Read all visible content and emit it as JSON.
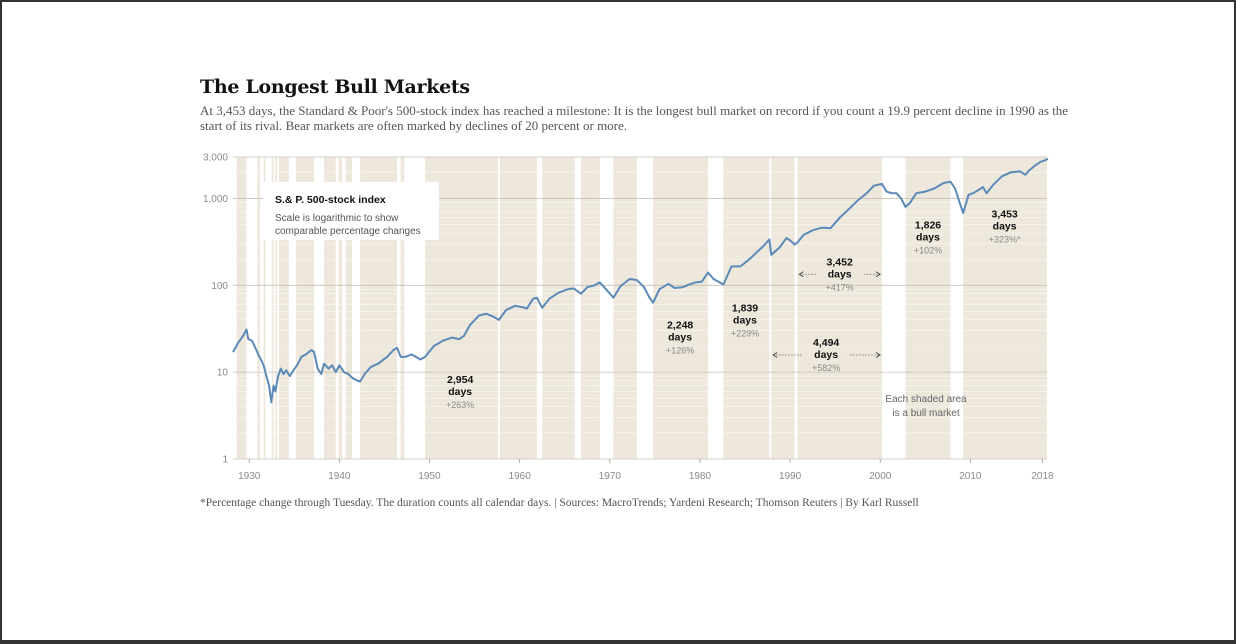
{
  "title": "The Longest Bull Markets",
  "subtitle": "At 3,453 days, the Standard & Poor's 500-stock index has reached a milestone: It is the longest bull market on record if you count a 19.9 percent decline in 1990 as the start of its rival. Bear markets are often marked by declines of 20 percent or more.",
  "footnote": "*Percentage change through Tuesday. The duration counts all calendar days. | Sources: MacroTrends; Yardeni Research; Thomson Reuters | By Karl Russell",
  "colors": {
    "line": "#5b8ab8",
    "shade": "#ede7dc",
    "background": "#ffffff"
  },
  "chart_data": {
    "type": "line",
    "scale": "log",
    "grid": true,
    "ylim": [
      1,
      3000
    ],
    "xlim": [
      1928.2,
      2018.5
    ],
    "y_ticks": [
      {
        "value": 3000,
        "label": "3,000"
      },
      {
        "value": 1000,
        "label": "1,000"
      },
      {
        "value": 100,
        "label": "100"
      },
      {
        "value": 10,
        "label": "10"
      },
      {
        "value": 1,
        "label": "1"
      }
    ],
    "x_ticks": [
      {
        "value": 1930,
        "label": "1930"
      },
      {
        "value": 1940,
        "label": "1940"
      },
      {
        "value": 1950,
        "label": "1950"
      },
      {
        "value": 1960,
        "label": "1960"
      },
      {
        "value": 1970,
        "label": "1970"
      },
      {
        "value": 1980,
        "label": "1980"
      },
      {
        "value": 1990,
        "label": "1990"
      },
      {
        "value": 2000,
        "label": "2000"
      },
      {
        "value": 2010,
        "label": "2010"
      },
      {
        "value": 2018,
        "label": "2018"
      }
    ],
    "legend": {
      "title": "S.& P. 500-stock index",
      "note_line1": "Scale is logarithmic to show",
      "note_line2": "comparable percentage changes"
    },
    "shade_note": {
      "line1": "Each shaded area",
      "line2": "is a bull market"
    },
    "bull_markets": [
      {
        "start": 1928.6,
        "end": 1929.7
      },
      {
        "start": 1930.9,
        "end": 1931.2
      },
      {
        "start": 1931.6,
        "end": 1931.8
      },
      {
        "start": 1932.5,
        "end": 1932.7
      },
      {
        "start": 1932.9,
        "end": 1933.1
      },
      {
        "start": 1933.3,
        "end": 1934.4
      },
      {
        "start": 1935.2,
        "end": 1937.2
      },
      {
        "start": 1938.3,
        "end": 1939.6
      },
      {
        "start": 1939.9,
        "end": 1940.3
      },
      {
        "start": 1940.7,
        "end": 1941.4
      },
      {
        "start": 1942.3,
        "end": 1946.4
      },
      {
        "start": 1946.8,
        "end": 1947.2
      },
      {
        "start": 1949.5,
        "end": 1957.6
      },
      {
        "start": 1957.8,
        "end": 1961.9
      },
      {
        "start": 1962.5,
        "end": 1966.1
      },
      {
        "start": 1966.8,
        "end": 1968.9
      },
      {
        "start": 1970.4,
        "end": 1973.0
      },
      {
        "start": 1974.8,
        "end": 1980.9
      },
      {
        "start": 1982.6,
        "end": 1987.7
      },
      {
        "start": 1987.9,
        "end": 1990.5
      },
      {
        "start": 1990.8,
        "end": 2000.2
      },
      {
        "start": 2002.8,
        "end": 2007.8
      },
      {
        "start": 2009.2,
        "end": 2018.5
      }
    ],
    "series": [
      {
        "x": [
          1928.2,
          1928.8,
          1929.3,
          1929.7,
          1929.9,
          1930.3,
          1930.6,
          1931.0,
          1931.3,
          1931.6,
          1931.9,
          1932.2,
          1932.45,
          1932.7,
          1932.9,
          1933.2,
          1933.5,
          1933.8,
          1934.1,
          1934.5,
          1934.9,
          1935.3,
          1935.8,
          1936.3,
          1936.9,
          1937.2,
          1937.6,
          1938.0,
          1938.3,
          1938.8,
          1939.2,
          1939.6,
          1940.0,
          1940.5,
          1941.0,
          1941.5,
          1942.0,
          1942.3,
          1942.8,
          1943.5,
          1944.3,
          1945.3,
          1946.0,
          1946.4,
          1946.8,
          1947.3,
          1948.0,
          1948.5,
          1949.0,
          1949.5,
          1950.5,
          1951.5,
          1952.5,
          1953.3,
          1953.8,
          1954.5,
          1955.5,
          1956.3,
          1957.0,
          1957.7,
          1958.5,
          1959.5,
          1960.3,
          1960.8,
          1961.5,
          1961.9,
          1962.5,
          1963.3,
          1964.3,
          1965.3,
          1966.0,
          1966.8,
          1967.5,
          1968.3,
          1968.9,
          1969.5,
          1970.4,
          1971.2,
          1972.2,
          1973.0,
          1973.8,
          1974.4,
          1974.8,
          1975.5,
          1976.5,
          1977.2,
          1978.1,
          1978.8,
          1979.5,
          1980.2,
          1980.9,
          1981.5,
          1982.6,
          1983.5,
          1984.5,
          1985.5,
          1986.3,
          1987.0,
          1987.7,
          1987.9,
          1988.8,
          1989.6,
          1990.0,
          1990.5,
          1990.8,
          1991.5,
          1992.5,
          1993.5,
          1994.5,
          1995.5,
          1996.5,
          1997.5,
          1998.5,
          1999.3,
          2000.2,
          2000.7,
          2001.3,
          2001.8,
          2002.3,
          2002.8,
          2003.3,
          2004.0,
          2005.0,
          2006.0,
          2007.0,
          2007.8,
          2008.3,
          2008.8,
          2009.2,
          2009.8,
          2010.3,
          2010.9,
          2011.4,
          2011.8,
          2012.5,
          2013.5,
          2014.5,
          2015.5,
          2016.1,
          2016.5,
          2017.2,
          2017.8,
          2018.3,
          2018.6
        ],
        "y": [
          17,
          22,
          26,
          31,
          24,
          23,
          20,
          16,
          14,
          12,
          9,
          7,
          4.5,
          7,
          6,
          9,
          11,
          9.5,
          10.5,
          9,
          10.5,
          12,
          15,
          16,
          18,
          17,
          11,
          9.5,
          12.5,
          11,
          12,
          10,
          12,
          10,
          9.5,
          8.5,
          8,
          7.8,
          9.5,
          11.5,
          12.5,
          15,
          18,
          19,
          15,
          15,
          16,
          15,
          14,
          15,
          20,
          23,
          25,
          24,
          26,
          35,
          45,
          47,
          44,
          40,
          52,
          58,
          56,
          54,
          70,
          72,
          55,
          70,
          82,
          90,
          92,
          80,
          95,
          100,
          108,
          92,
          72,
          98,
          118,
          115,
          95,
          72,
          63,
          90,
          104,
          93,
          95,
          102,
          108,
          110,
          140,
          118,
          102,
          165,
          165,
          200,
          240,
          280,
          337,
          224,
          270,
          350,
          330,
          295,
          310,
          380,
          430,
          460,
          455,
          600,
          750,
          950,
          1150,
          1400,
          1470,
          1200,
          1150,
          1150,
          1000,
          800,
          890,
          1150,
          1200,
          1300,
          1500,
          1560,
          1300,
          900,
          680,
          1100,
          1150,
          1250,
          1350,
          1150,
          1420,
          1800,
          2000,
          2050,
          1870,
          2100,
          2400,
          2650,
          2750,
          2860
        ]
      }
    ],
    "annotations": [
      {
        "days_num": "2,954",
        "days_word": "days",
        "pct": "+263%",
        "x": 1953.4,
        "y": 7.5
      },
      {
        "days_num": "2,248",
        "days_word": "days",
        "pct": "+126%",
        "x": 1977.8,
        "y": 32
      },
      {
        "days_num": "1,839",
        "days_word": "days",
        "pct": "+229%",
        "x": 1985.0,
        "y": 50
      },
      {
        "days_num": "3,452",
        "days_word": "days",
        "pct": "+417%",
        "x": 1995.5,
        "y": 170,
        "arrow": [
          1990.8,
          2000.2
        ]
      },
      {
        "days_num": "4,494",
        "days_word": "days",
        "pct": "+582%",
        "x": 1994.0,
        "y": 20,
        "arrow": [
          1987.9,
          2000.2
        ]
      },
      {
        "days_num": "1,826",
        "days_word": "days",
        "pct": "+102%",
        "x": 2005.3,
        "y": 450
      },
      {
        "days_num": "3,453",
        "days_word": "days",
        "pct": "+323%*",
        "x": 2013.8,
        "y": 600
      }
    ]
  }
}
